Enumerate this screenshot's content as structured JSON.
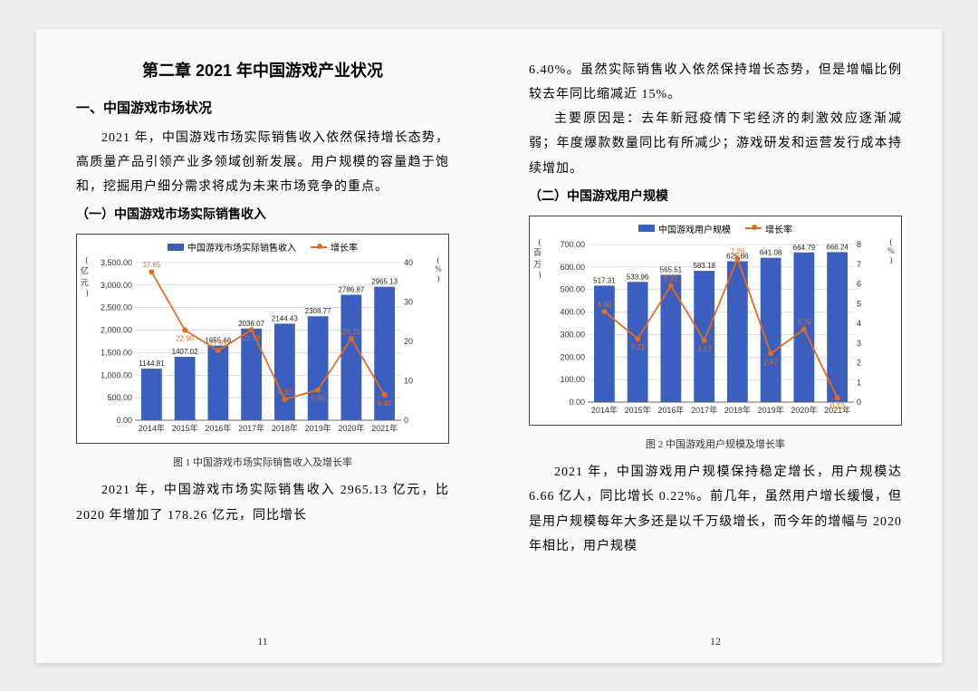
{
  "pageLeft": {
    "chapterTitle": "第二章 2021 年中国游戏产业状况",
    "h1": "一、中国游戏市场状况",
    "p1": "2021 年，中国游戏市场实际销售收入依然保持增长态势，高质量产品引领产业多领域创新发展。用户规模的容量趋于饱和，挖掘用户细分需求将成为未来市场竞争的重点。",
    "h2": "（一）中国游戏市场实际销售收入",
    "caption1": "图 1 中国游戏市场实际销售收入及增长率",
    "p2": "2021 年，中国游戏市场实际销售收入 2965.13 亿元，比 2020 年增加了 178.26 亿元，同比增长",
    "pageNum": "11"
  },
  "pageRight": {
    "p3": "6.40%。虽然实际销售收入依然保持增长态势，但是增幅比例较去年同比缩减近 15%。",
    "p4": "主要原因是：去年新冠疫情下宅经济的刺激效应逐渐减弱；年度爆款数量同比有所减少；游戏研发和运营发行成本持续增加。",
    "h2": "（二）中国游戏用户规模",
    "caption2": "图 2 中国游戏用户规模及增长率",
    "p5": "2021 年，中国游戏用户规模保持稳定增长，用户规模达 6.66 亿人，同比增长 0.22%。前几年，虽然用户增长缓慢，但是用户规模每年大多还是以千万级增长，而今年的增幅与 2020 年相比，用户规模",
    "pageNum": "12"
  },
  "chart1": {
    "type": "bar+line",
    "legendBar": "中国游戏市场实际销售收入",
    "legendLine": "增长率",
    "yLeftUnit": "亿元",
    "yRightUnit": "%",
    "barColor": "#3b5fbf",
    "lineColor": "#e86a1a",
    "gridColor": "#cccccc",
    "bg": "#ffffff",
    "axisFont": 9,
    "labelFont": 8,
    "years": [
      "2014年",
      "2015年",
      "2016年",
      "2017年",
      "2018年",
      "2019年",
      "2020年",
      "2021年"
    ],
    "bars": [
      1144.81,
      1407.02,
      1655.66,
      2036.07,
      2144.43,
      2308.77,
      2786.87,
      2965.13
    ],
    "line": [
      37.65,
      22.9,
      17.67,
      22.98,
      5.32,
      7.66,
      20.71,
      6.4
    ],
    "yLeftTicks": [
      0,
      500,
      1000,
      1500,
      2000,
      2500,
      3000,
      3500
    ],
    "yLeftMax": 3500,
    "yRightTicks": [
      0,
      10,
      20,
      30,
      40
    ],
    "yRightMax": 40,
    "barWidth": 0.62
  },
  "chart2": {
    "type": "bar+line",
    "legendBar": "中国游戏用户规模",
    "legendLine": "增长率",
    "yLeftUnit": "百万",
    "yRightUnit": "%",
    "barColor": "#3b5fbf",
    "lineColor": "#e86a1a",
    "gridColor": "#cccccc",
    "bg": "#ffffff",
    "axisFont": 9,
    "labelFont": 8,
    "years": [
      "2014年",
      "2015年",
      "2016年",
      "2017年",
      "2018年",
      "2019年",
      "2020年",
      "2021年"
    ],
    "bars": [
      517.31,
      533.96,
      565.51,
      583.18,
      625.66,
      641.08,
      664.79,
      666.24
    ],
    "line": [
      4.6,
      3.22,
      5.91,
      3.13,
      7.28,
      2.47,
      3.7,
      0.22
    ],
    "yLeftTicks": [
      0,
      100,
      200,
      300,
      400,
      500,
      600,
      700
    ],
    "yLeftMax": 700,
    "yRightTicks": [
      0,
      1,
      2,
      3,
      4,
      5,
      6,
      7,
      8
    ],
    "yRightMax": 8,
    "barWidth": 0.62
  }
}
